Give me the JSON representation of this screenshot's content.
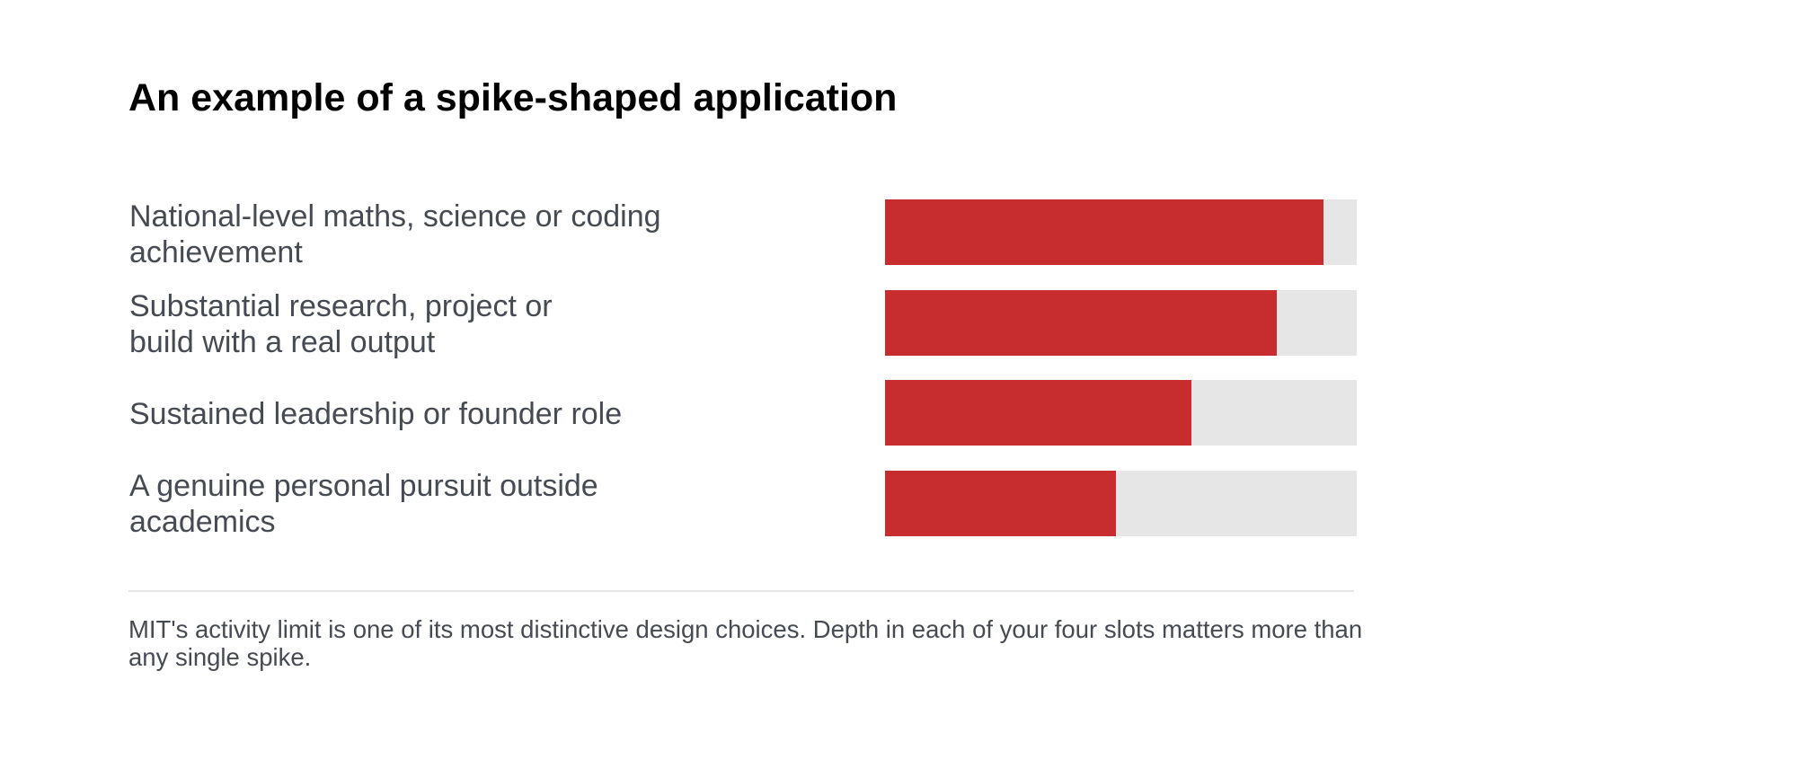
{
  "title": "An example of a spike-shaped application",
  "chart_data": {
    "type": "bar",
    "orientation": "horizontal",
    "title": "An example of a spike-shaped application",
    "xlabel": "",
    "ylabel": "",
    "grid": false,
    "legend": "none",
    "categories": [
      "National-level maths, science or coding\nachievement",
      "Substantial research, project or\nbuild with a real output",
      "Sustained leadership or founder role",
      "A genuine personal pursuit outside\nacademics"
    ],
    "values": [
      93,
      83,
      65,
      49
    ],
    "xlim": [
      0,
      100
    ],
    "colors": {
      "bar": "#c72d2f",
      "track": "#e6e6e6"
    }
  },
  "footnote": "MIT's activity limit is one of its most distinctive design choices. Depth in each of your four slots matters more than any single spike."
}
